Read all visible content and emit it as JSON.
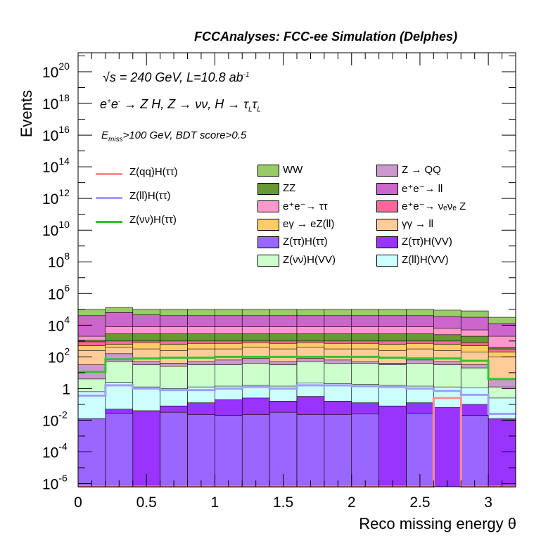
{
  "header": {
    "title": "FCCAnalyses: FCC-ee Simulation (Delphes)"
  },
  "annotations": {
    "line1": "√s = 240 GeV, L=10.8 ab",
    "line1_sup": "-1",
    "line2_a": "e",
    "line2_b": "+",
    "line2_c": "e",
    "line2_d": "-",
    "line2_e": " → Z H, Z → νν, H → τ",
    "line2_f": "L",
    "line2_g": "τ",
    "line2_h": "L",
    "line3_a": "E",
    "line3_b": "miss",
    "line3_c": ">100 GeV, BDT score>0.5"
  },
  "legend": {
    "lines": [
      {
        "label": "Z(qq)H(ττ)",
        "color": "#ff8f8f"
      },
      {
        "label": "Z(ll)H(ττ)",
        "color": "#9f9ff7"
      },
      {
        "label": "Z(νν)H(ττ)",
        "color": "#33c233"
      }
    ],
    "boxes_col1": [
      {
        "label": "WW",
        "color": "#99cc66"
      },
      {
        "label": "ZZ",
        "color": "#669933"
      },
      {
        "label": "e⁺e⁻→ ττ",
        "color": "#ff99cc"
      },
      {
        "label": "eγ → eZ(ll)",
        "color": "#ffcc66"
      },
      {
        "label": "Z(ττ)H(ττ)",
        "color": "#9966ff"
      },
      {
        "label": "Z(νν)H(VV)",
        "color": "#ccffcc"
      }
    ],
    "boxes_col2": [
      {
        "label": "Z → QQ",
        "color": "#cc99cc"
      },
      {
        "label": "e⁺e⁻→ ll",
        "color": "#cc66cc"
      },
      {
        "label": "e⁺e⁻→ νₑνₑ Z",
        "color": "#ff6699"
      },
      {
        "label": "γγ → ll",
        "color": "#ffcc99"
      },
      {
        "label": "Z(ττ)H(VV)",
        "color": "#9933ff"
      },
      {
        "label": "Z(ll)H(VV)",
        "color": "#ccffff"
      }
    ]
  },
  "chart_data": {
    "type": "area",
    "xlabel": "Reco missing energy θ",
    "ylabel": "Events",
    "xlim": [
      0,
      3.2
    ],
    "ylim_log10": [
      -6.2,
      21.2
    ],
    "y_log": true,
    "x_ticks": [
      "0",
      "0.5",
      "1",
      "1.5",
      "2",
      "2.5",
      "3"
    ],
    "y_ticks": [
      {
        "base": "10",
        "exp": "20"
      },
      {
        "base": "10",
        "exp": "18"
      },
      {
        "base": "10",
        "exp": "16"
      },
      {
        "base": "10",
        "exp": "14"
      },
      {
        "base": "10",
        "exp": "12"
      },
      {
        "base": "10",
        "exp": "10"
      },
      {
        "base": "10",
        "exp": "8"
      },
      {
        "base": "10",
        "exp": "6"
      },
      {
        "base": "10",
        "exp": "4"
      },
      {
        "base": "10",
        "exp": "2"
      },
      {
        "base": "1",
        "exp": ""
      },
      {
        "base": "10",
        "exp": "-2"
      },
      {
        "base": "10",
        "exp": "-4"
      },
      {
        "base": "10",
        "exp": "-6"
      }
    ],
    "bin_edges": [
      0,
      0.2,
      0.4,
      0.6,
      0.8,
      1.0,
      1.2,
      1.4,
      1.6,
      1.8,
      2.0,
      2.2,
      2.4,
      2.6,
      2.8,
      3.0,
      3.2
    ],
    "stack_log10_tops": [
      {
        "name": "Z(ll)H(VV)",
        "color": "#ccffff",
        "values": [
          -0.2,
          0.4,
          0.1,
          0.0,
          0.1,
          0.15,
          0.2,
          0.15,
          0.35,
          0.3,
          0.25,
          0.2,
          0.15,
          0.1,
          0.05,
          -0.6
        ]
      },
      {
        "name": "Z(νν)H(VV)",
        "color": "#ccffcc",
        "values": [
          0.6,
          1.7,
          1.5,
          1.4,
          1.5,
          1.5,
          1.6,
          1.5,
          1.7,
          1.6,
          1.6,
          1.5,
          1.6,
          1.5,
          1.3,
          0.1
        ]
      },
      {
        "name": "Z → QQ",
        "color": "#cc99cc",
        "values": [
          1.5,
          2.2,
          1.7,
          1.6,
          1.7,
          1.8,
          1.9,
          1.7,
          1.9,
          1.8,
          1.7,
          1.6,
          1.8,
          1.7,
          1.5,
          0.6
        ]
      },
      {
        "name": "γγ → ll",
        "color": "#ffcc99",
        "values": [
          2.4,
          2.6,
          2.5,
          2.4,
          2.5,
          2.5,
          2.6,
          2.5,
          2.6,
          2.5,
          2.5,
          2.4,
          2.5,
          2.4,
          2.3,
          2.0
        ]
      },
      {
        "name": "eγ → eZ(ll)",
        "color": "#ffcc66",
        "values": [
          2.7,
          2.8,
          2.9,
          2.8,
          2.85,
          2.85,
          2.9,
          2.85,
          2.9,
          2.85,
          2.85,
          2.8,
          2.85,
          2.8,
          2.7,
          2.3
        ]
      },
      {
        "name": "e⁺e⁻→ νₑνₑ Z",
        "color": "#ff6699",
        "values": [
          2.95,
          3.0,
          3.0,
          3.0,
          3.0,
          3.0,
          3.0,
          3.0,
          3.0,
          3.0,
          3.0,
          3.0,
          3.0,
          3.0,
          2.9,
          2.5
        ]
      },
      {
        "name": "ZZ",
        "color": "#669933",
        "values": [
          3.05,
          3.45,
          3.45,
          3.45,
          3.45,
          3.45,
          3.45,
          3.45,
          3.45,
          3.45,
          3.45,
          3.45,
          3.45,
          3.4,
          3.3,
          2.6
        ]
      },
      {
        "name": "e⁺e⁻→ ττ",
        "color": "#ff99cc",
        "values": [
          3.3,
          3.9,
          3.9,
          3.9,
          3.9,
          3.9,
          3.9,
          3.9,
          3.9,
          3.9,
          3.9,
          3.9,
          3.9,
          3.8,
          3.7,
          3.3
        ]
      },
      {
        "name": "e⁺e⁻→ ll",
        "color": "#cc66cc",
        "values": [
          4.6,
          4.8,
          4.65,
          4.6,
          4.6,
          4.6,
          4.6,
          4.6,
          4.6,
          4.6,
          4.6,
          4.6,
          4.6,
          4.55,
          4.5,
          4.1
        ]
      },
      {
        "name": "WW",
        "color": "#99cc66",
        "values": [
          5.0,
          5.1,
          5.0,
          5.0,
          5.0,
          5.0,
          5.0,
          5.0,
          5.0,
          5.0,
          5.0,
          5.0,
          5.0,
          4.95,
          4.9,
          4.5
        ]
      }
    ],
    "bottom_stack_log10": [
      {
        "name": "Z(ττ)H(ττ)",
        "color": "#9966ff",
        "values": [
          -1.9,
          -1.55,
          -6.5,
          -1.5,
          -1.65,
          -1.7,
          -1.65,
          -1.5,
          -1.65,
          -1.65,
          -1.6,
          -6.5,
          -1.55,
          -6.5,
          -1.7,
          -6.5
        ]
      },
      {
        "name": "Z(ττ)H(VV)",
        "color": "#9933ff",
        "values": [
          -1.9,
          -1.3,
          -1.4,
          -1.1,
          -0.9,
          -0.7,
          -0.6,
          -0.8,
          -0.5,
          -0.8,
          -0.9,
          -1.1,
          -0.9,
          -1.2,
          -1.0,
          -1.9
        ]
      }
    ],
    "lines_log10": [
      {
        "name": "Z(νν)H(ττ)",
        "color": "#33c233",
        "values": [
          1.05,
          1.85,
          1.9,
          1.95,
          1.95,
          2.0,
          2.0,
          2.0,
          2.0,
          2.0,
          2.0,
          1.95,
          1.9,
          1.9,
          1.75,
          0.6
        ]
      },
      {
        "name": "Z(ll)H(ττ)",
        "color": "#9f9ff7",
        "values": [
          -0.45,
          0.2,
          0.0,
          -0.1,
          -0.1,
          0.0,
          0.1,
          0.0,
          0.2,
          0.2,
          0.15,
          0.1,
          0.0,
          -0.15,
          -0.4,
          -1.6
        ]
      },
      {
        "name": "Z(qq)H(ττ)",
        "color": "#ff8f8f",
        "values": [
          -6.5,
          -6.5,
          -6.5,
          -6.5,
          -6.5,
          -6.5,
          -6.5,
          -6.5,
          -6.5,
          -6.5,
          -6.5,
          -6.5,
          -6.5,
          -0.6,
          -6.5,
          -6.5
        ]
      }
    ]
  }
}
